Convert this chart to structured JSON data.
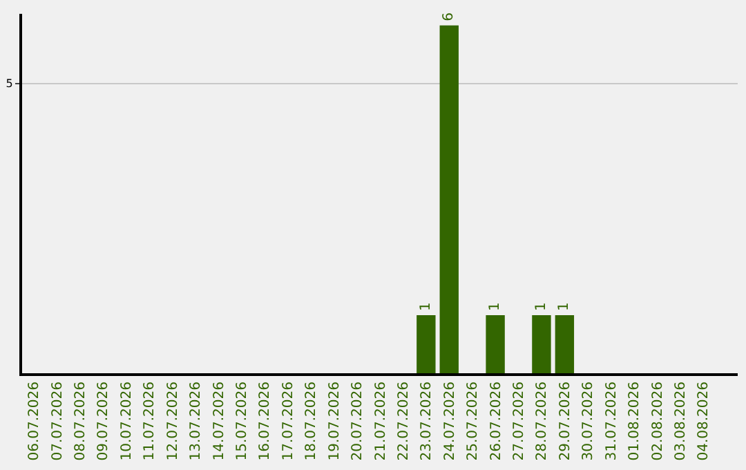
{
  "chart_data": {
    "type": "bar",
    "categories": [
      "06.07.2026",
      "07.07.2026",
      "08.07.2026",
      "09.07.2026",
      "10.07.2026",
      "11.07.2026",
      "12.07.2026",
      "13.07.2026",
      "14.07.2026",
      "15.07.2026",
      "16.07.2026",
      "17.07.2026",
      "18.07.2026",
      "19.07.2026",
      "20.07.2026",
      "21.07.2026",
      "22.07.2026",
      "23.07.2026",
      "24.07.2026",
      "25.07.2026",
      "26.07.2026",
      "27.07.2026",
      "28.07.2026",
      "29.07.2026",
      "30.07.2026",
      "31.07.2026",
      "01.08.2026",
      "02.08.2026",
      "03.08.2026",
      "04.08.2026"
    ],
    "values": [
      null,
      null,
      null,
      null,
      null,
      null,
      null,
      null,
      null,
      null,
      null,
      null,
      null,
      null,
      null,
      null,
      null,
      1,
      6,
      null,
      1,
      null,
      1,
      1,
      null,
      null,
      null,
      null,
      null,
      null
    ],
    "data_labels": true,
    "color": "#336600",
    "ylim": [
      0,
      6.2
    ],
    "yticks": [
      5
    ],
    "grid": "y"
  }
}
